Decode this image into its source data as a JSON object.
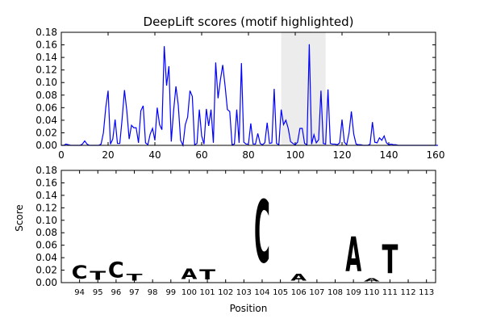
{
  "chart_data": [
    {
      "type": "line",
      "title": "DeepLift scores (motif highlighted)",
      "xlabel": "",
      "ylabel": "",
      "xlim": [
        0,
        160
      ],
      "ylim": [
        0,
        0.18
      ],
      "x_ticks": [
        0,
        20,
        40,
        60,
        80,
        100,
        120,
        140,
        160
      ],
      "y_ticks": [
        0.0,
        0.02,
        0.04,
        0.06,
        0.08,
        0.1,
        0.12,
        0.14,
        0.16,
        0.18
      ],
      "highlight_span": [
        94,
        113
      ],
      "highlight_color": "#d9d9d9",
      "line_color": "#0000ff",
      "series": [
        {
          "values": [
            0,
            0,
            0.002,
            0.001,
            0,
            0,
            0,
            0,
            0,
            0.002,
            0.007,
            0.002,
            0,
            0,
            0,
            0,
            0,
            0.002,
            0.02,
            0.06,
            0.087,
            0.002,
            0.01,
            0.041,
            0.003,
            0.003,
            0.042,
            0.088,
            0.055,
            0.01,
            0.032,
            0.028,
            0.028,
            0.004,
            0.055,
            0.063,
            0.004,
            0.001,
            0.018,
            0.027,
            0.008,
            0.06,
            0.033,
            0.025,
            0.158,
            0.095,
            0.126,
            0.006,
            0.055,
            0.094,
            0.064,
            0.008,
            0,
            0.033,
            0.045,
            0.087,
            0.078,
            0.001,
            0.003,
            0.057,
            0.015,
            0.002,
            0.058,
            0.031,
            0.057,
            0.004,
            0.132,
            0.075,
            0.104,
            0.128,
            0.095,
            0.057,
            0.054,
            0.001,
            0.002,
            0.057,
            0.004,
            0.131,
            0.005,
            0.002,
            0.002,
            0.035,
            0.002,
            0.002,
            0.019,
            0.003,
            0.001,
            0.004,
            0.036,
            0.003,
            0.004,
            0.09,
            0.003,
            0.001,
            0.057,
            0.033,
            0.04,
            0.027,
            0.006,
            0.003,
            0.001,
            0.005,
            0.027,
            0.027,
            0.003,
            0.001,
            0.161,
            0.002,
            0.017,
            0.004,
            0.009,
            0.087,
            0.003,
            0.002,
            0.089,
            0.003,
            0.002,
            0.002,
            0.001,
            0.004,
            0.041,
            0.005,
            0.001,
            0.02,
            0.054,
            0.018,
            0.002,
            0.001,
            0.001,
            0,
            0,
            0,
            0.002,
            0.037,
            0.005,
            0.004,
            0.012,
            0.008,
            0.015,
            0.004,
            0.001,
            0.002,
            0.001,
            0.001,
            0,
            0,
            0,
            0,
            0,
            0,
            0,
            0,
            0,
            0,
            0,
            0,
            0,
            0,
            0,
            0,
            0,
            0
          ]
        }
      ]
    },
    {
      "type": "bar",
      "title": "",
      "xlabel": "Position",
      "ylabel": "Score",
      "ylim": [
        0,
        0.18
      ],
      "y_ticks": [
        0.0,
        0.02,
        0.04,
        0.06,
        0.08,
        0.1,
        0.12,
        0.14,
        0.16,
        0.18
      ],
      "categories": [
        "94",
        "95",
        "96",
        "97",
        "98",
        "99",
        "100",
        "101",
        "102",
        "103",
        "104",
        "105",
        "106",
        "107",
        "108",
        "109",
        "110",
        "111",
        "112",
        "113"
      ],
      "letters": [
        {
          "pos": "94",
          "base": "C",
          "score": 0.033,
          "color": "#0000ff"
        },
        {
          "pos": "95",
          "base": "T",
          "score": 0.023,
          "color": "#ff0000"
        },
        {
          "pos": "96",
          "base": "C",
          "score": 0.04,
          "color": "#0000ff"
        },
        {
          "pos": "97",
          "base": "T",
          "score": 0.017,
          "color": "#ff0000"
        },
        {
          "pos": "98",
          "base": "",
          "score": 0,
          "color": "#000000"
        },
        {
          "pos": "99",
          "base": "",
          "score": 0,
          "color": "#000000"
        },
        {
          "pos": "100",
          "base": "A",
          "score": 0.027,
          "color": "#008000"
        },
        {
          "pos": "101",
          "base": "T",
          "score": 0.025,
          "color": "#ff0000"
        },
        {
          "pos": "102",
          "base": "",
          "score": 0,
          "color": "#000000"
        },
        {
          "pos": "103",
          "base": "",
          "score": 0,
          "color": "#000000"
        },
        {
          "pos": "104",
          "base": "C",
          "score": 0.161,
          "color": "#0000ff"
        },
        {
          "pos": "105",
          "base": "",
          "score": 0,
          "color": "#000000"
        },
        {
          "pos": "106",
          "base": "A",
          "score": 0.017,
          "color": "#008000"
        },
        {
          "pos": "107",
          "base": "",
          "score": 0,
          "color": "#000000"
        },
        {
          "pos": "108",
          "base": "",
          "score": 0,
          "color": "#000000"
        },
        {
          "pos": "109",
          "base": "A",
          "score": 0.089,
          "color": "#008000"
        },
        {
          "pos": "110",
          "base": "A",
          "score": 0.008,
          "color": "#008000"
        },
        {
          "pos": "111",
          "base": "T",
          "score": 0.074,
          "color": "#ff0000"
        },
        {
          "pos": "112",
          "base": "",
          "score": 0,
          "color": "#000000"
        },
        {
          "pos": "113",
          "base": "",
          "score": 0,
          "color": "#000000"
        }
      ]
    }
  ]
}
